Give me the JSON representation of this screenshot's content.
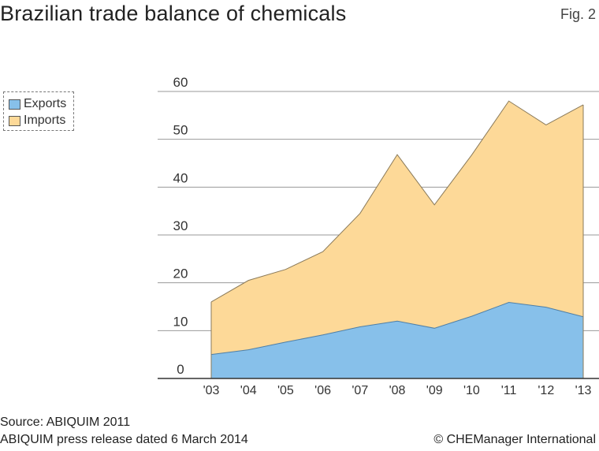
{
  "header": {
    "title": "Brazilian trade balance of chemicals",
    "fig_label": "Fig. 2"
  },
  "legend": {
    "items": [
      {
        "label": "Exports",
        "color": "#87c0ea"
      },
      {
        "label": "Imports",
        "color": "#fdd998"
      }
    ]
  },
  "footer": {
    "source_line1": "Source: ABIQUIM 2011",
    "source_line2": "ABIQUIM press release dated 6 March 2014",
    "copyright": "© CHEManager International"
  },
  "colors": {
    "exports": "#87c0ea",
    "imports": "#fdd998",
    "grid": "#999999",
    "axis": "#333333"
  },
  "chart_data": {
    "type": "area",
    "stacked": false,
    "title": "Brazilian trade balance of chemicals",
    "xlabel": "",
    "ylabel": "",
    "categories": [
      "'03",
      "'04",
      "'05",
      "'06",
      "'07",
      "'08",
      "'09",
      "'10",
      "'11",
      "'12",
      "'13"
    ],
    "ylim": [
      0,
      60
    ],
    "yticks": [
      0,
      10,
      20,
      30,
      40,
      50,
      60
    ],
    "grid": true,
    "legend_position": "top-left",
    "series": [
      {
        "name": "Imports",
        "values": [
          16,
          20.5,
          22.8,
          26.5,
          34.5,
          46.8,
          36.3,
          46.7,
          58,
          53,
          57.2
        ]
      },
      {
        "name": "Exports",
        "values": [
          5,
          6,
          7.6,
          9.1,
          10.8,
          12,
          10.5,
          13,
          15.9,
          14.9,
          12.9
        ]
      }
    ]
  }
}
